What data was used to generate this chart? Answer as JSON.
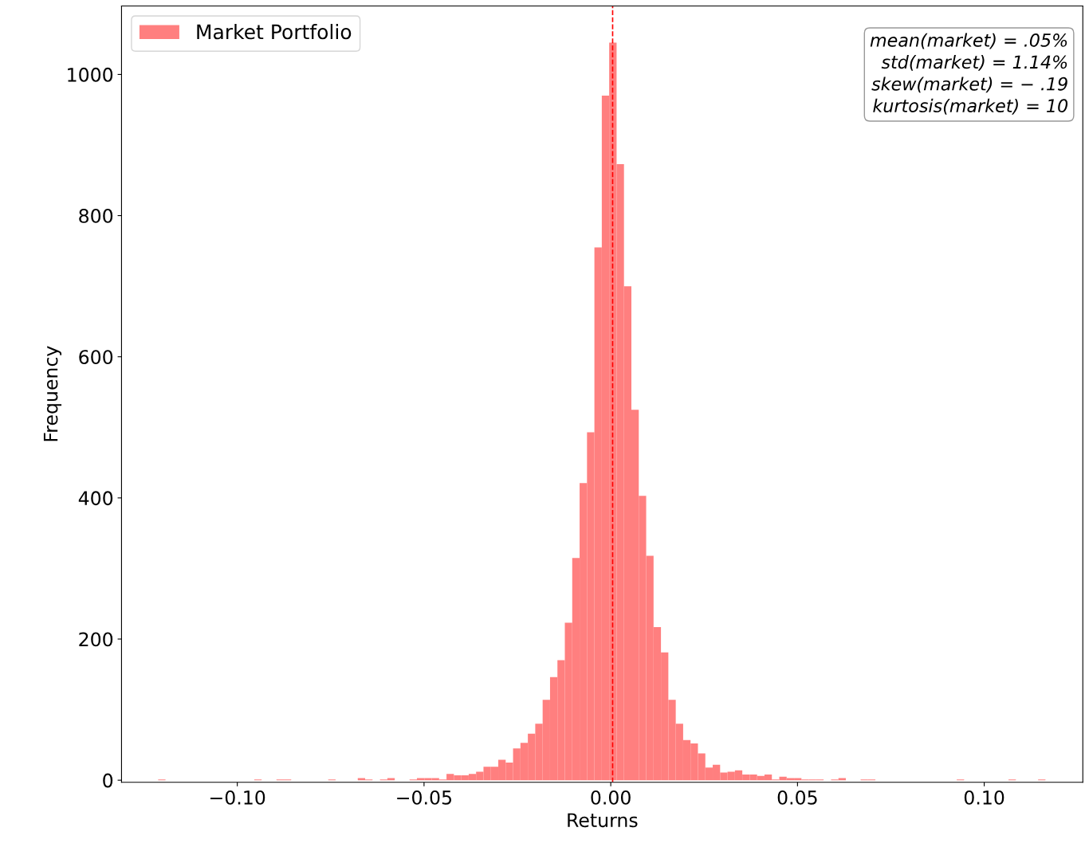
{
  "chart_data": {
    "type": "histogram",
    "xlabel": "Returns",
    "ylabel": "Frequency",
    "bins": [
      -0.1212,
      -0.11922,
      -0.11724,
      -0.11526,
      -0.11328,
      -0.1113,
      -0.10932,
      -0.10734,
      -0.10536,
      -0.10338,
      -0.1014,
      -0.09942,
      -0.09744,
      -0.09546,
      -0.09348,
      -0.0915,
      -0.08952,
      -0.08754,
      -0.08556,
      -0.08358,
      -0.0816,
      -0.07962,
      -0.07764,
      -0.07566,
      -0.07368,
      -0.0717,
      -0.06972,
      -0.06774,
      -0.06576,
      -0.06378,
      -0.0618,
      -0.05982,
      -0.05784,
      -0.05586,
      -0.05388,
      -0.0519,
      -0.04992,
      -0.04794,
      -0.04596,
      -0.04398,
      -0.042,
      -0.04002,
      -0.03804,
      -0.03606,
      -0.03408,
      -0.0321,
      -0.03012,
      -0.02814,
      -0.02616,
      -0.02418,
      -0.0222,
      -0.02022,
      -0.01824,
      -0.01626,
      -0.01428,
      -0.0123,
      -0.01032,
      -0.00834,
      -0.00636,
      -0.00438,
      -0.0024,
      -0.00042,
      0.00156,
      0.00354,
      0.00552,
      0.0075,
      0.00948,
      0.01146,
      0.01344,
      0.01542,
      0.0174,
      0.01938,
      0.02136,
      0.02334,
      0.02532,
      0.0273,
      0.02928,
      0.03126,
      0.03324,
      0.03522,
      0.0372,
      0.03918,
      0.04116,
      0.04314,
      0.04512,
      0.0471,
      0.04908,
      0.05106,
      0.05304,
      0.05502,
      0.057,
      0.05898,
      0.06096,
      0.06294,
      0.06492,
      0.0669,
      0.06888,
      0.07086,
      0.07284,
      0.07482,
      0.0768,
      0.07878,
      0.08076,
      0.08274,
      0.08472,
      0.0867,
      0.08868,
      0.09066,
      0.09264,
      0.09462,
      0.0966,
      0.09858,
      0.10056,
      0.10254,
      0.10452,
      0.1065,
      0.10848,
      0.11046,
      0.11244,
      0.11442,
      0.1164
    ],
    "series": [
      {
        "name": "Market Portfolio",
        "color": "#ff7f7f",
        "values": [
          1,
          0,
          0,
          0,
          0,
          0,
          0,
          0,
          0,
          0,
          0,
          0,
          0,
          1,
          0,
          0,
          1,
          1,
          0,
          0,
          0,
          0,
          0,
          1,
          0,
          0,
          0,
          3,
          1,
          0,
          1,
          3,
          0,
          0,
          1,
          3,
          3,
          3,
          1,
          9,
          7,
          7,
          9,
          12,
          19,
          19,
          29,
          25,
          45,
          53,
          66,
          80,
          114,
          146,
          170,
          223,
          315,
          421,
          493,
          755,
          970,
          1045,
          873,
          700,
          525,
          403,
          318,
          217,
          181,
          114,
          80,
          57,
          52,
          38,
          18,
          22,
          11,
          12,
          14,
          8,
          8,
          6,
          8,
          1,
          5,
          3,
          3,
          1,
          1,
          1,
          0,
          1,
          3,
          0,
          0,
          1,
          1,
          0,
          0,
          0,
          0,
          0,
          0,
          0,
          0,
          0,
          0,
          0,
          1,
          0,
          0,
          0,
          0,
          0,
          0,
          1,
          0,
          0,
          0,
          1
        ]
      }
    ],
    "xlim": [
      -0.131,
      0.1264
    ],
    "ylim": [
      -3,
      1097
    ],
    "xticks": [
      {
        "value": -0.1,
        "label": "−0.10"
      },
      {
        "value": -0.05,
        "label": "−0.05"
      },
      {
        "value": 0,
        "label": "0.00"
      },
      {
        "value": 0.05,
        "label": "0.05"
      },
      {
        "value": 0.1,
        "label": "0.10"
      }
    ],
    "yticks": [
      0,
      200,
      400,
      600,
      800,
      1000
    ],
    "ref_lines": [
      {
        "axis": "x",
        "value": 0.0005,
        "color": "#ff0000",
        "line_style": "dashed"
      }
    ],
    "annotations": [
      "mean(market) = .05%\nstd(market) = 1.14%\nskew(market) = − .19\nkurtosis(market) = 10"
    ],
    "legend": "top left",
    "grid": false
  }
}
